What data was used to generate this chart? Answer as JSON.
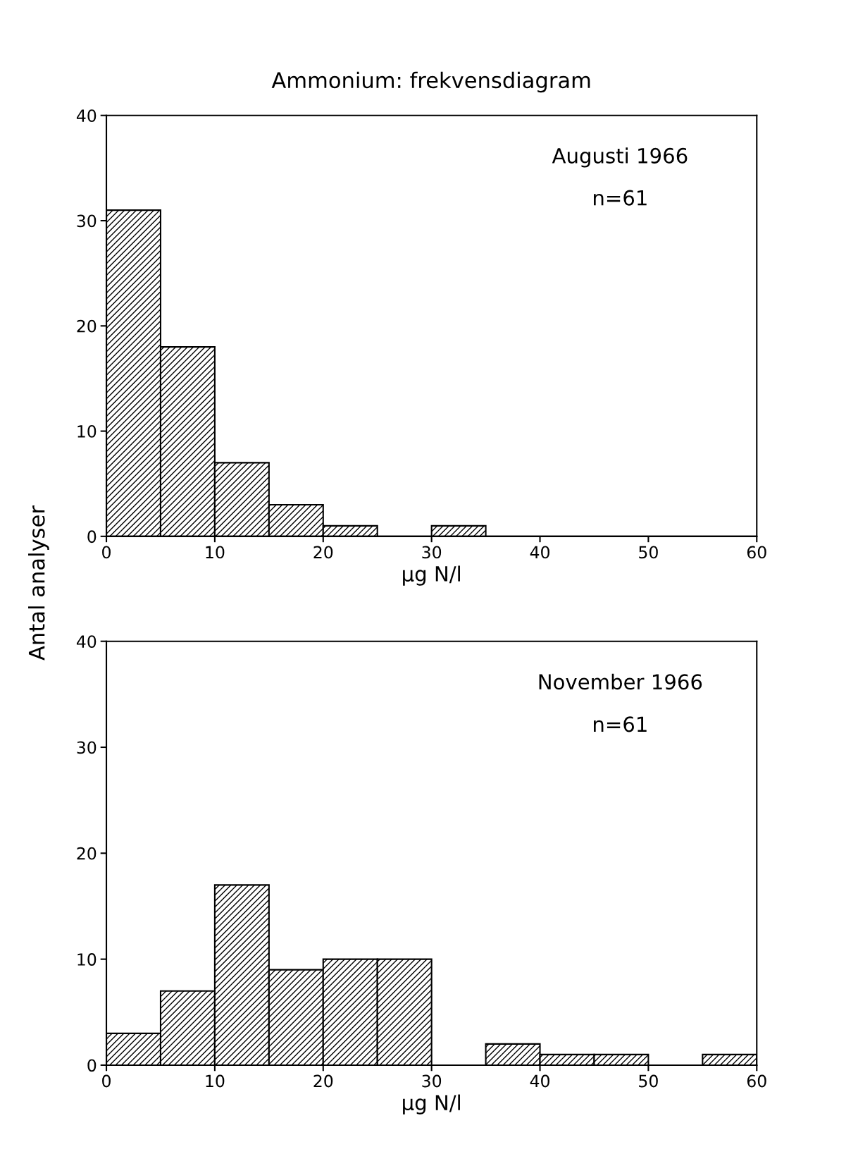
{
  "chart_data": [
    {
      "type": "histogram",
      "title": "Ammonium: frekvensdiagram",
      "xlabel": "µg N/l",
      "ylabel": "Antal analyser",
      "annotations": [
        "Augusti 1966",
        "n=61"
      ],
      "bins": [
        0,
        5,
        10,
        15,
        20,
        25,
        30,
        35,
        40,
        45,
        50,
        55,
        60
      ],
      "values": [
        31,
        18,
        7,
        3,
        1,
        0,
        1,
        0,
        0,
        0,
        0,
        0
      ],
      "color": "#000000",
      "xlim": [
        0,
        60
      ],
      "xticks": [
        0,
        10,
        20,
        30,
        40,
        50,
        60
      ],
      "ylim": [
        0,
        40
      ],
      "yticks": [
        0,
        10,
        20,
        30,
        40
      ],
      "grid": false,
      "legend": false
    },
    {
      "type": "histogram",
      "xlabel": "µg N/l",
      "annotations": [
        "November 1966",
        "n=61"
      ],
      "bins": [
        0,
        5,
        10,
        15,
        20,
        25,
        30,
        35,
        40,
        45,
        50,
        55,
        60
      ],
      "values": [
        3,
        7,
        17,
        9,
        10,
        10,
        0,
        2,
        1,
        1,
        0,
        1
      ],
      "color": "#000000",
      "xlim": [
        0,
        60
      ],
      "xticks": [
        0,
        10,
        20,
        30,
        40,
        50,
        60
      ],
      "ylim": [
        0,
        40
      ],
      "yticks": [
        0,
        10,
        20,
        30,
        40
      ],
      "grid": false,
      "legend": false
    }
  ]
}
